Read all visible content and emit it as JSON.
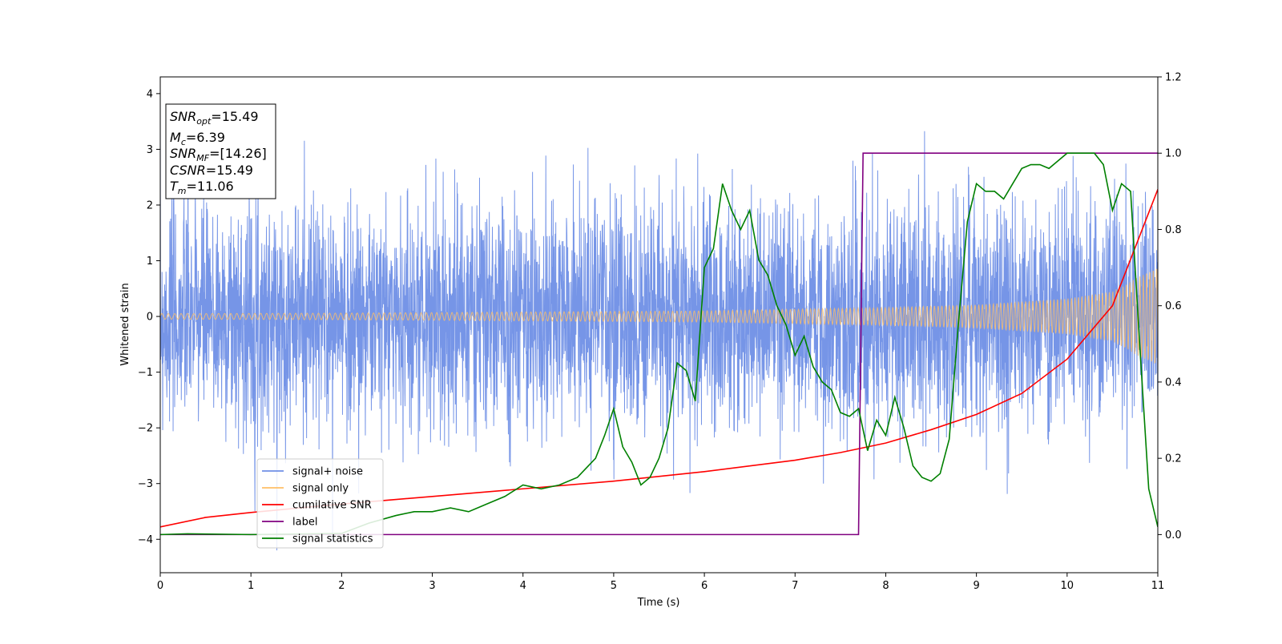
{
  "chart_data": {
    "type": "line",
    "xlabel": "Time (s)",
    "ylabel": "Whitened strain",
    "xlim": [
      0,
      11
    ],
    "ylim": [
      -4.6,
      4.3
    ],
    "y2lim": [
      -0.1,
      1.2
    ],
    "xticks": [
      0,
      1,
      2,
      3,
      4,
      5,
      6,
      7,
      8,
      9,
      10,
      11
    ],
    "yticks": [
      -4,
      -3,
      -2,
      -1,
      0,
      1,
      2,
      3,
      4
    ],
    "y2ticks": [
      "0.0",
      "0.2",
      "0.4",
      "0.6",
      "0.8",
      "1.0",
      "1.2"
    ],
    "legend_location": "lower-left",
    "legend": [
      {
        "label": "signal+ noise",
        "color": "#6f8fe6"
      },
      {
        "label": "signal only",
        "color": "#ffbf66"
      },
      {
        "label": "cumilative SNR",
        "color": "#ff0000"
      },
      {
        "label": "label",
        "color": "#800080"
      },
      {
        "label": "signal statistics",
        "color": "#008000"
      }
    ],
    "annotation": [
      {
        "main": "SNR",
        "sub": "opt",
        "rest": "=15.49"
      },
      {
        "main": "M",
        "sub": "c",
        "rest": "=6.39"
      },
      {
        "main": "SNR",
        "sub": "MF",
        "rest": "=[14.26]"
      },
      {
        "main": "CSNR",
        "sub": "",
        "rest": "=15.49"
      },
      {
        "main": "T",
        "sub": "m",
        "rest": "=11.06"
      }
    ],
    "series": [
      {
        "name": "signal+ noise",
        "axis": "left",
        "color": "#6f8fe6",
        "description_range": [
          -4.2,
          3.9
        ]
      },
      {
        "name": "signal only",
        "axis": "left",
        "color": "#ffbf66",
        "envelope": {
          "x": [
            0,
            2,
            4,
            6,
            7,
            8,
            9,
            10,
            10.5,
            11
          ],
          "amp": [
            0.05,
            0.06,
            0.08,
            0.1,
            0.13,
            0.16,
            0.21,
            0.32,
            0.45,
            0.9
          ]
        }
      },
      {
        "name": "cumilative SNR",
        "axis": "right",
        "color": "#ff0000",
        "x": [
          0,
          0.5,
          1,
          2,
          3,
          4,
          5,
          6,
          7,
          7.5,
          8,
          8.5,
          9,
          9.5,
          10,
          10.5,
          11
        ],
        "y": [
          0.02,
          0.045,
          0.058,
          0.08,
          0.1,
          0.12,
          0.14,
          0.165,
          0.195,
          0.215,
          0.24,
          0.275,
          0.315,
          0.37,
          0.46,
          0.6,
          0.905
        ]
      },
      {
        "name": "label",
        "axis": "right",
        "color": "#800080",
        "x": [
          0,
          7.7,
          7.75,
          11
        ],
        "y": [
          0.0,
          0.0,
          1.0,
          1.0
        ]
      },
      {
        "name": "signal statistics",
        "axis": "right",
        "color": "#008000",
        "x": [
          0,
          0.3,
          1,
          2,
          2.3,
          2.6,
          2.8,
          3,
          3.2,
          3.4,
          3.6,
          3.8,
          4,
          4.2,
          4.4,
          4.6,
          4.8,
          4.9,
          5,
          5.1,
          5.2,
          5.3,
          5.4,
          5.5,
          5.6,
          5.7,
          5.8,
          5.9,
          6.0,
          6.1,
          6.2,
          6.3,
          6.4,
          6.5,
          6.6,
          6.7,
          6.8,
          6.9,
          7.0,
          7.1,
          7.2,
          7.3,
          7.4,
          7.5,
          7.6,
          7.7,
          7.8,
          7.9,
          8.0,
          8.1,
          8.2,
          8.3,
          8.4,
          8.5,
          8.6,
          8.7,
          8.8,
          8.9,
          9.0,
          9.1,
          9.2,
          9.3,
          9.4,
          9.5,
          9.6,
          9.7,
          9.8,
          9.9,
          10.0,
          10.1,
          10.2,
          10.3,
          10.4,
          10.5,
          10.6,
          10.7,
          10.8,
          10.9,
          11.0
        ],
        "y": [
          0.0,
          0.002,
          0.0,
          0.003,
          0.03,
          0.05,
          0.06,
          0.06,
          0.07,
          0.06,
          0.08,
          0.1,
          0.13,
          0.12,
          0.13,
          0.15,
          0.2,
          0.26,
          0.33,
          0.23,
          0.19,
          0.13,
          0.15,
          0.2,
          0.28,
          0.45,
          0.43,
          0.35,
          0.7,
          0.75,
          0.92,
          0.85,
          0.8,
          0.85,
          0.72,
          0.68,
          0.6,
          0.55,
          0.47,
          0.52,
          0.44,
          0.4,
          0.38,
          0.32,
          0.31,
          0.33,
          0.22,
          0.3,
          0.26,
          0.36,
          0.28,
          0.18,
          0.15,
          0.14,
          0.16,
          0.25,
          0.55,
          0.82,
          0.92,
          0.9,
          0.9,
          0.88,
          0.92,
          0.96,
          0.97,
          0.97,
          0.96,
          0.98,
          1.0,
          1.0,
          1.0,
          1.0,
          0.97,
          0.85,
          0.92,
          0.9,
          0.5,
          0.12,
          0.02
        ]
      }
    ]
  }
}
